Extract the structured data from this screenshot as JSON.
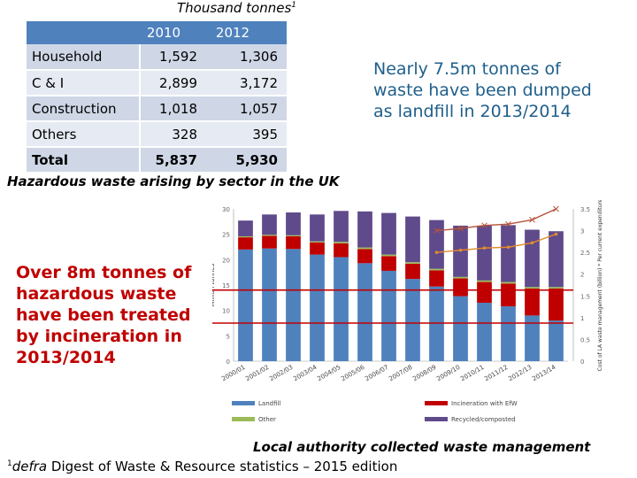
{
  "table": {
    "unit": "Thousand tonnes",
    "unit_sup": "1",
    "col_2010": "2010",
    "col_2012": "2012",
    "rows": [
      {
        "label": "Household",
        "v2010": "1,592",
        "v2012": "1,306"
      },
      {
        "label": "C & I",
        "v2010": "2,899",
        "v2012": "3,172"
      },
      {
        "label": "Construction",
        "v2010": "1,018",
        "v2012": "1,057"
      },
      {
        "label": "Others",
        "v2010": "328",
        "v2012": "395"
      },
      {
        "label": "Total",
        "v2010": "5,837",
        "v2012": "5,930"
      }
    ]
  },
  "caption": "Hazardous waste arising by sector in the UK",
  "note_landfill": "Nearly 7.5m tonnes of waste have been dumped as landfill in 2013/2014",
  "note_hazard": "Over 8m tonnes of hazardous waste have been treated by incineration in 2013/2014",
  "lac_caption": "Local authority collected waste management",
  "footer": {
    "sup": "1",
    "source_italic": "defra",
    "source_rest": " Digest of Waste & Resource statistics – 2015 edition"
  },
  "colors": {
    "landfill": "#4f81bd",
    "incineration": "#c00000",
    "other": "#9bbb59",
    "recycled": "#5f4a8b",
    "cost_line": "#b5543a",
    "cost_line2": "#e38b2c",
    "marker_line": "#c00000"
  },
  "chart_data": {
    "type": "bar",
    "stacked": true,
    "categories": [
      "2000/01",
      "2001/02",
      "2002/03",
      "2003/04",
      "2004/05",
      "2005/06",
      "2006/07",
      "2007/08",
      "2008/09",
      "2009/10",
      "2010/11",
      "2011/12",
      "2012/13",
      "2013/14"
    ],
    "ylabel": "Million tonnes",
    "ylim": [
      0,
      30
    ],
    "yticks": [
      "0",
      "5",
      "10",
      "15",
      "20",
      "25",
      "30"
    ],
    "y2label": "Cost of LA waste management (billion) * Per current expenditure",
    "y2lim": [
      0,
      3.5
    ],
    "y2ticks": [
      "0",
      "0.5",
      "1",
      "1.5",
      "2",
      "2.5",
      "3",
      "3.5"
    ],
    "series": [
      {
        "name": "Landfill",
        "values": [
          22.0,
          22.2,
          22.1,
          21.0,
          20.5,
          19.3,
          17.8,
          16.2,
          14.7,
          12.8,
          11.5,
          10.8,
          9.0,
          8.0
        ]
      },
      {
        "name": "Incineration with EfW",
        "values": [
          2.4,
          2.5,
          2.5,
          2.4,
          2.7,
          2.8,
          2.9,
          3.0,
          3.2,
          3.5,
          4.1,
          4.5,
          5.3,
          6.3
        ]
      },
      {
        "name": "Other",
        "values": [
          0.2,
          0.2,
          0.2,
          0.2,
          0.3,
          0.3,
          0.3,
          0.3,
          0.3,
          0.3,
          0.3,
          0.3,
          0.3,
          0.3
        ]
      },
      {
        "name": "Recycled/composted",
        "values": [
          3.1,
          4.0,
          4.5,
          5.3,
          6.1,
          7.1,
          8.2,
          9.0,
          9.6,
          10.1,
          10.8,
          11.2,
          11.3,
          11.0
        ]
      }
    ],
    "line_series": [
      {
        "x_start_index": 8,
        "values": [
          3.0,
          3.05,
          3.12,
          3.15,
          3.25,
          3.5
        ]
      },
      {
        "x_start_index": 8,
        "values": [
          2.5,
          2.55,
          2.6,
          2.62,
          2.72,
          2.92
        ]
      }
    ],
    "legend": [
      "Landfill",
      "Incineration with EfW",
      "Other",
      "Recycled/composted"
    ],
    "reference_lines": [
      14.0,
      7.5
    ]
  }
}
